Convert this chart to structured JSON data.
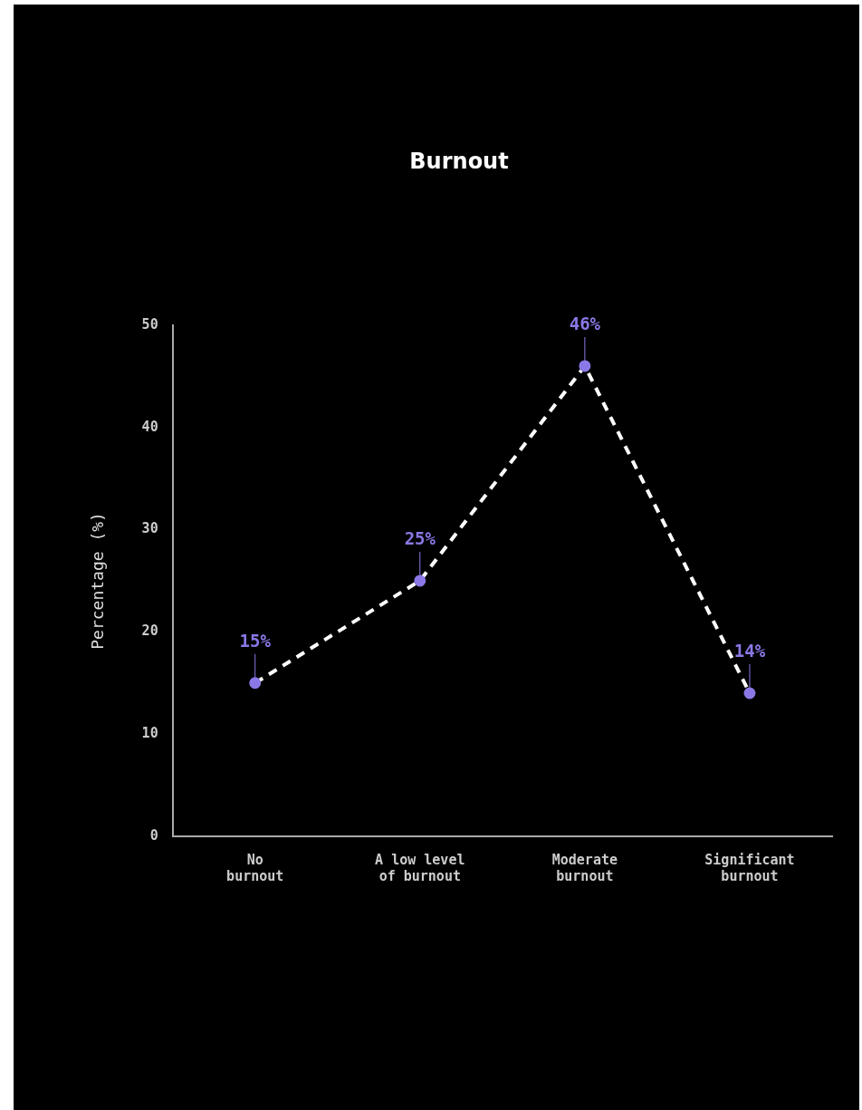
{
  "chart_data": {
    "type": "line",
    "title": "Burnout",
    "ylabel": "Percentage (%)",
    "categories": [
      "No burnout",
      "A low level of burnout",
      "Moderate burnout",
      "Significant burnout"
    ],
    "series": [
      {
        "color": "#ffffff",
        "colors": [
          "#8b78e6",
          "#8b78e6",
          "#8b78e6",
          "#8b78e6"
        ],
        "values": [
          15,
          25,
          46,
          14
        ],
        "value_labels": [
          "15%",
          "25%",
          "46%",
          "14%"
        ]
      }
    ],
    "ylim": [
      0,
      50
    ],
    "yticks": [
      0,
      10,
      20,
      30,
      40,
      50
    ],
    "grid": false,
    "legend": false,
    "marker": "circle",
    "line_style": "dashed"
  }
}
